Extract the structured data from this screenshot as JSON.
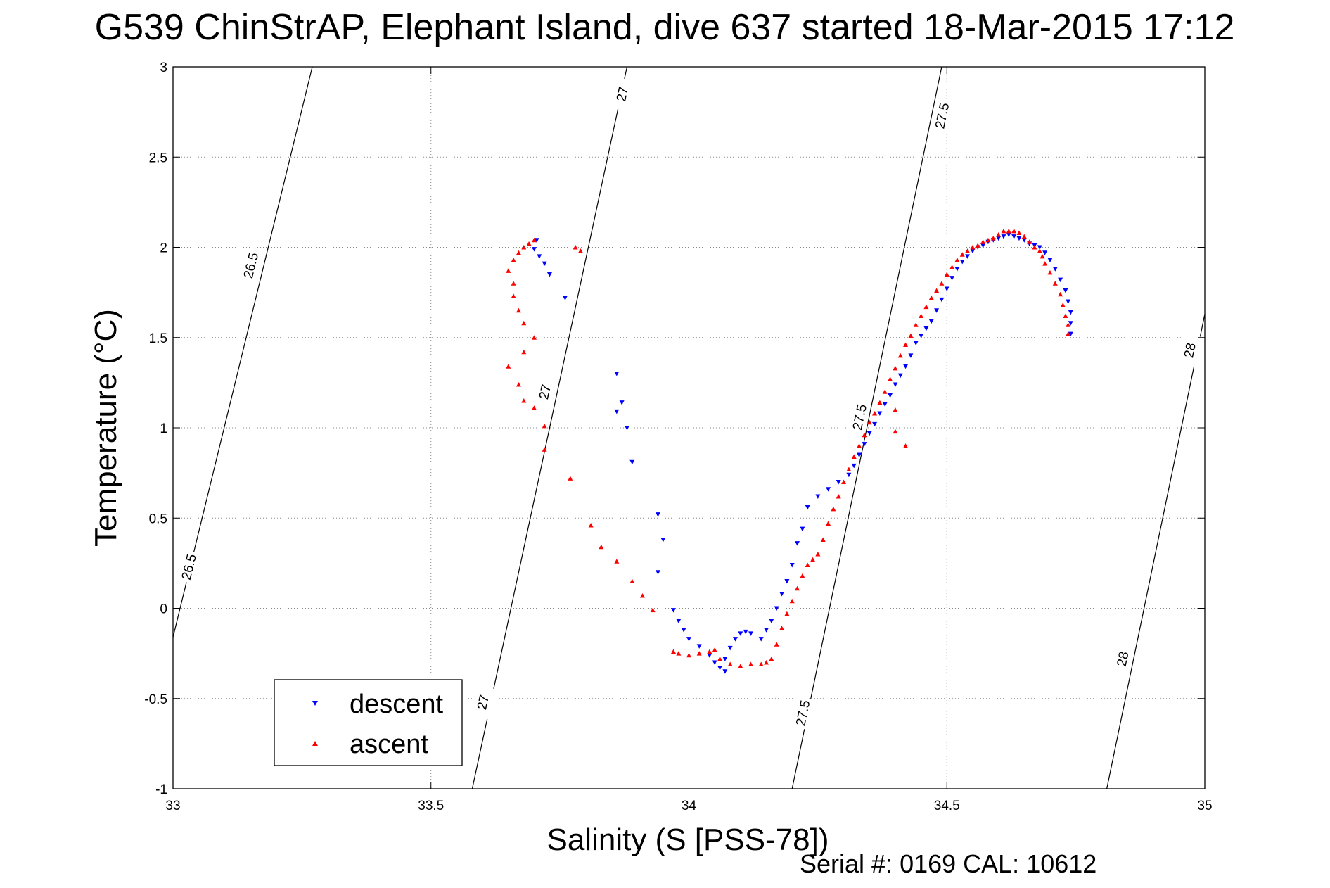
{
  "chart_data": {
    "type": "scatter",
    "title": "G539 ChinStrAP, Elephant Island, dive 637 started 18-Mar-2015 17:12",
    "xlabel": "Salinity (S [PSS-78])",
    "ylabel": "Temperature (°C)",
    "xlim": [
      33,
      35
    ],
    "ylim": [
      -1,
      3
    ],
    "xticks": [
      "33",
      "33.5",
      "34",
      "34.5",
      "35"
    ],
    "yticks": [
      "-1",
      "-0.5",
      "0",
      "0.5",
      "1",
      "1.5",
      "2",
      "2.5",
      "3"
    ],
    "grid": true,
    "legend_position": "bottom-left",
    "footer": "Serial #: 0169 CAL: 10612",
    "contours": [
      {
        "level": "26.5",
        "points": [
          [
            33.0,
            -0.16
          ],
          [
            33.27,
            3.0
          ]
        ],
        "label_positions": [
          [
            33.03,
            0.23
          ],
          [
            33.15,
            1.9
          ]
        ]
      },
      {
        "level": "27",
        "points": [
          [
            33.58,
            -1.0
          ],
          [
            33.88,
            3.0
          ]
        ],
        "label_positions": [
          [
            33.6,
            -0.52
          ],
          [
            33.72,
            1.2
          ],
          [
            33.87,
            2.85
          ]
        ]
      },
      {
        "level": "27.5",
        "points": [
          [
            34.2,
            -1.0
          ],
          [
            34.49,
            3.0
          ]
        ],
        "label_positions": [
          [
            34.22,
            -0.58
          ],
          [
            34.33,
            1.06
          ],
          [
            34.49,
            2.73
          ]
        ]
      },
      {
        "level": "28",
        "points": [
          [
            34.81,
            -1.0
          ],
          [
            35.0,
            1.63
          ]
        ],
        "label_positions": [
          [
            34.84,
            -0.28
          ],
          [
            34.97,
            1.43
          ]
        ]
      }
    ],
    "series": [
      {
        "name": "descent",
        "color": "#0000ff",
        "marker": "triangle-down",
        "points": [
          [
            34.74,
            1.52
          ],
          [
            34.74,
            1.58
          ],
          [
            34.74,
            1.64
          ],
          [
            34.735,
            1.7
          ],
          [
            34.73,
            1.76
          ],
          [
            34.72,
            1.82
          ],
          [
            34.71,
            1.88
          ],
          [
            34.7,
            1.93
          ],
          [
            34.69,
            1.97
          ],
          [
            34.68,
            2.0
          ],
          [
            34.67,
            2.01
          ],
          [
            34.66,
            2.02
          ],
          [
            34.65,
            2.04
          ],
          [
            34.64,
            2.05
          ],
          [
            34.63,
            2.06
          ],
          [
            34.62,
            2.07
          ],
          [
            34.61,
            2.06
          ],
          [
            34.6,
            2.05
          ],
          [
            34.59,
            2.04
          ],
          [
            34.58,
            2.03
          ],
          [
            34.57,
            2.01
          ],
          [
            34.56,
            2.0
          ],
          [
            34.55,
            1.98
          ],
          [
            34.54,
            1.95
          ],
          [
            34.53,
            1.92
          ],
          [
            34.52,
            1.88
          ],
          [
            34.51,
            1.83
          ],
          [
            34.5,
            1.77
          ],
          [
            34.49,
            1.71
          ],
          [
            34.48,
            1.65
          ],
          [
            34.47,
            1.59
          ],
          [
            34.46,
            1.55
          ],
          [
            34.45,
            1.51
          ],
          [
            34.44,
            1.47
          ],
          [
            34.43,
            1.4
          ],
          [
            34.42,
            1.34
          ],
          [
            34.41,
            1.29
          ],
          [
            34.4,
            1.24
          ],
          [
            34.39,
            1.18
          ],
          [
            34.38,
            1.13
          ],
          [
            34.37,
            1.08
          ],
          [
            34.36,
            1.02
          ],
          [
            34.35,
            0.97
          ],
          [
            34.34,
            0.91
          ],
          [
            34.33,
            0.85
          ],
          [
            34.32,
            0.79
          ],
          [
            34.31,
            0.74
          ],
          [
            34.29,
            0.7
          ],
          [
            34.27,
            0.66
          ],
          [
            34.25,
            0.62
          ],
          [
            34.23,
            0.56
          ],
          [
            34.22,
            0.44
          ],
          [
            34.21,
            0.36
          ],
          [
            34.2,
            0.24
          ],
          [
            34.19,
            0.15
          ],
          [
            34.18,
            0.08
          ],
          [
            34.17,
            0.0
          ],
          [
            34.16,
            -0.07
          ],
          [
            34.15,
            -0.12
          ],
          [
            34.14,
            -0.17
          ],
          [
            34.12,
            -0.14
          ],
          [
            34.11,
            -0.13
          ],
          [
            34.1,
            -0.14
          ],
          [
            34.09,
            -0.17
          ],
          [
            34.08,
            -0.22
          ],
          [
            34.07,
            -0.28
          ],
          [
            34.06,
            -0.33
          ],
          [
            34.07,
            -0.35
          ],
          [
            34.05,
            -0.3
          ],
          [
            34.04,
            -0.26
          ],
          [
            34.02,
            -0.21
          ],
          [
            34.0,
            -0.17
          ],
          [
            33.99,
            -0.12
          ],
          [
            33.98,
            -0.07
          ],
          [
            33.97,
            -0.01
          ],
          [
            33.94,
            0.2
          ],
          [
            33.95,
            0.38
          ],
          [
            33.94,
            0.52
          ],
          [
            33.89,
            0.81
          ],
          [
            33.88,
            1.0
          ],
          [
            33.87,
            1.14
          ],
          [
            33.86,
            1.09
          ],
          [
            33.86,
            1.3
          ],
          [
            33.76,
            1.72
          ],
          [
            33.73,
            1.85
          ],
          [
            33.72,
            1.91
          ],
          [
            33.71,
            1.95
          ],
          [
            33.7,
            1.99
          ],
          [
            33.705,
            2.04
          ]
        ]
      },
      {
        "name": "ascent",
        "color": "#ff0000",
        "marker": "triangle-up",
        "points": [
          [
            34.735,
            1.52
          ],
          [
            34.735,
            1.57
          ],
          [
            34.73,
            1.62
          ],
          [
            34.725,
            1.68
          ],
          [
            34.72,
            1.74
          ],
          [
            34.71,
            1.8
          ],
          [
            34.7,
            1.86
          ],
          [
            34.69,
            1.91
          ],
          [
            34.685,
            1.95
          ],
          [
            34.68,
            1.98
          ],
          [
            34.67,
            2.0
          ],
          [
            34.66,
            2.03
          ],
          [
            34.65,
            2.06
          ],
          [
            34.64,
            2.08
          ],
          [
            34.63,
            2.09
          ],
          [
            34.62,
            2.09
          ],
          [
            34.61,
            2.09
          ],
          [
            34.6,
            2.07
          ],
          [
            34.59,
            2.05
          ],
          [
            34.58,
            2.04
          ],
          [
            34.57,
            2.03
          ],
          [
            34.56,
            2.01
          ],
          [
            34.55,
            2.0
          ],
          [
            34.54,
            1.98
          ],
          [
            34.53,
            1.96
          ],
          [
            34.52,
            1.93
          ],
          [
            34.51,
            1.89
          ],
          [
            34.5,
            1.85
          ],
          [
            34.49,
            1.8
          ],
          [
            34.48,
            1.76
          ],
          [
            34.47,
            1.72
          ],
          [
            34.46,
            1.67
          ],
          [
            34.45,
            1.62
          ],
          [
            34.44,
            1.57
          ],
          [
            34.43,
            1.51
          ],
          [
            34.42,
            1.46
          ],
          [
            34.41,
            1.4
          ],
          [
            34.4,
            1.33
          ],
          [
            34.39,
            1.27
          ],
          [
            34.38,
            1.2
          ],
          [
            34.37,
            1.14
          ],
          [
            34.36,
            1.08
          ],
          [
            34.35,
            1.03
          ],
          [
            34.34,
            0.96
          ],
          [
            34.33,
            0.9
          ],
          [
            34.32,
            0.84
          ],
          [
            34.31,
            0.77
          ],
          [
            34.3,
            0.7
          ],
          [
            34.29,
            0.62
          ],
          [
            34.28,
            0.55
          ],
          [
            34.27,
            0.47
          ],
          [
            34.26,
            0.38
          ],
          [
            34.25,
            0.3
          ],
          [
            34.24,
            0.27
          ],
          [
            34.23,
            0.24
          ],
          [
            34.22,
            0.18
          ],
          [
            34.21,
            0.11
          ],
          [
            34.2,
            0.04
          ],
          [
            34.19,
            -0.03
          ],
          [
            34.18,
            -0.11
          ],
          [
            34.17,
            -0.2
          ],
          [
            34.16,
            -0.28
          ],
          [
            34.15,
            -0.3
          ],
          [
            34.14,
            -0.31
          ],
          [
            34.12,
            -0.31
          ],
          [
            34.1,
            -0.32
          ],
          [
            34.08,
            -0.31
          ],
          [
            34.06,
            -0.28
          ],
          [
            34.05,
            -0.23
          ],
          [
            34.04,
            -0.24
          ],
          [
            34.02,
            -0.25
          ],
          [
            34.0,
            -0.26
          ],
          [
            33.98,
            -0.25
          ],
          [
            33.97,
            -0.24
          ],
          [
            33.93,
            -0.01
          ],
          [
            33.91,
            0.07
          ],
          [
            33.89,
            0.15
          ],
          [
            33.86,
            0.26
          ],
          [
            33.83,
            0.34
          ],
          [
            33.81,
            0.46
          ],
          [
            33.77,
            0.72
          ],
          [
            33.72,
            0.88
          ],
          [
            33.72,
            1.01
          ],
          [
            33.7,
            1.11
          ],
          [
            33.68,
            1.15
          ],
          [
            33.67,
            1.24
          ],
          [
            33.65,
            1.34
          ],
          [
            33.68,
            1.42
          ],
          [
            33.7,
            1.5
          ],
          [
            33.68,
            1.58
          ],
          [
            33.67,
            1.65
          ],
          [
            33.66,
            1.73
          ],
          [
            33.66,
            1.8
          ],
          [
            33.65,
            1.87
          ],
          [
            33.66,
            1.93
          ],
          [
            33.67,
            1.97
          ],
          [
            33.68,
            2.0
          ],
          [
            33.69,
            2.02
          ],
          [
            33.7,
            2.04
          ],
          [
            33.79,
            1.98
          ],
          [
            33.78,
            2.0
          ],
          [
            34.4,
            0.98
          ],
          [
            34.42,
            0.9
          ],
          [
            34.4,
            1.1
          ]
        ]
      }
    ]
  }
}
